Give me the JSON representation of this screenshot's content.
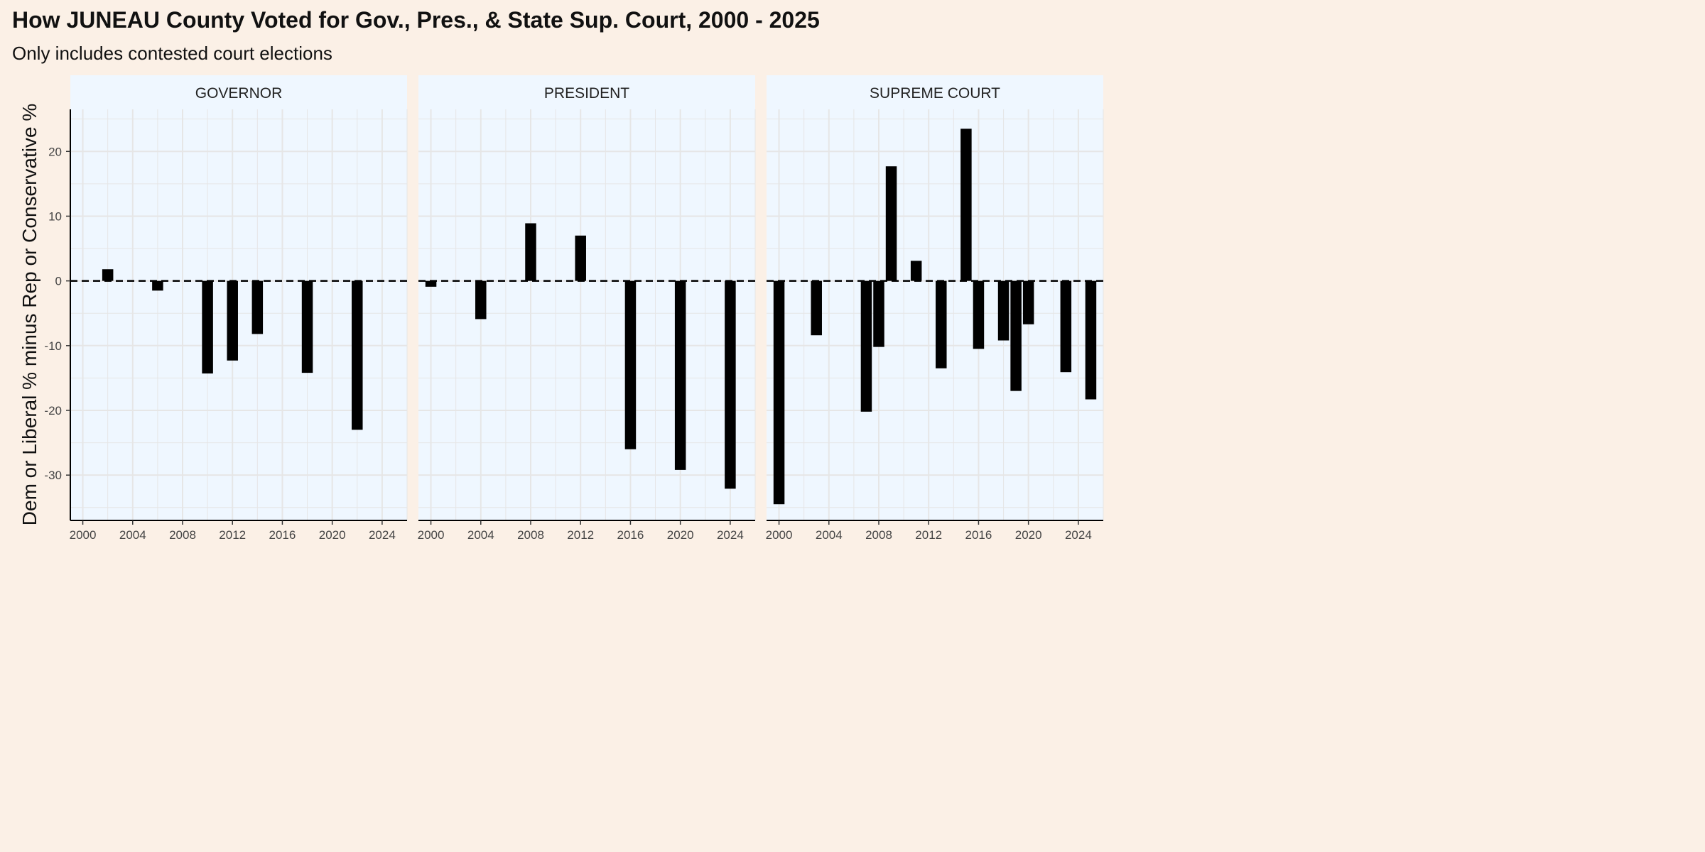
{
  "chart_data": {
    "type": "bar",
    "title": "How JUNEAU County Voted for Gov., Pres., & State Sup. Court, 2000 - 2025",
    "subtitle": "Only includes contested court elections",
    "xlabel": "",
    "ylabel": "Dem or Liberal % minus Rep or Conservative %",
    "xlim": [
      1999,
      2026
    ],
    "ylim": [
      -37,
      26.5
    ],
    "x_ticks": [
      2000,
      2004,
      2008,
      2012,
      2016,
      2020,
      2024
    ],
    "y_ticks": [
      -30,
      -20,
      -10,
      0,
      10,
      20
    ],
    "reference_line": {
      "y": 0,
      "style": "dashed"
    },
    "grid": true,
    "colors": {
      "bar": "#000000",
      "panel_bg": "#eff7ff",
      "strip_bg": "#eff7ff",
      "page_bg": "#fbf0e6",
      "grid": "#e6e6e6"
    },
    "panels": [
      {
        "name": "GOVERNOR",
        "x": [
          2002,
          2006,
          2010,
          2012,
          2014,
          2018,
          2022
        ],
        "values": [
          1.8,
          -1.5,
          -14.3,
          -12.3,
          -8.2,
          -14.2,
          -23.0
        ]
      },
      {
        "name": "PRESIDENT",
        "x": [
          2000,
          2004,
          2008,
          2012,
          2016,
          2020,
          2024
        ],
        "values": [
          -0.9,
          -5.9,
          8.9,
          7.0,
          -26.0,
          -29.2,
          -32.1
        ]
      },
      {
        "name": "SUPREME COURT",
        "x": [
          2000,
          2003,
          2007,
          2008,
          2009,
          2011,
          2013,
          2015,
          2016,
          2018,
          2019,
          2020,
          2023,
          2025
        ],
        "values": [
          -34.5,
          -8.4,
          -20.2,
          -10.2,
          17.7,
          3.1,
          -13.5,
          23.5,
          -10.5,
          -9.2,
          -17.0,
          -6.7,
          -14.1,
          -18.3
        ]
      }
    ]
  }
}
